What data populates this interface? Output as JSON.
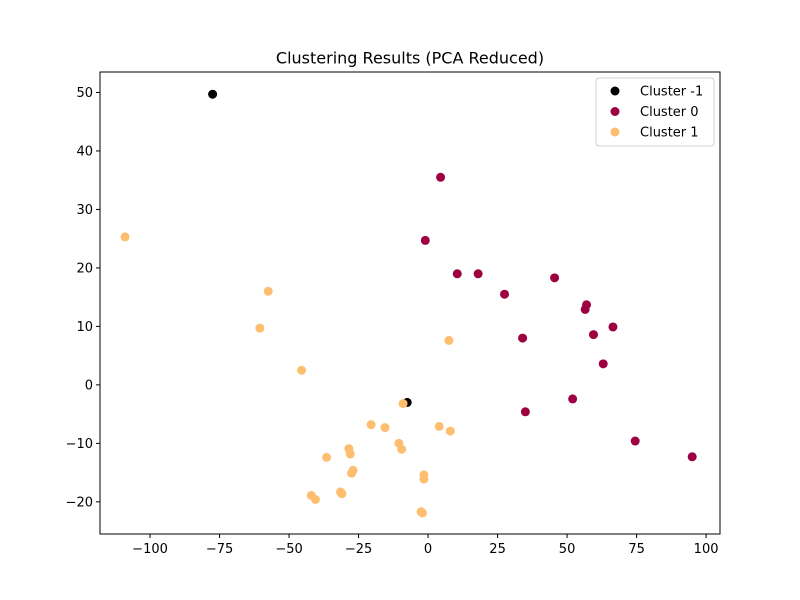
{
  "chart_data": {
    "type": "scatter",
    "title": "Clustering Results (PCA Reduced)",
    "xlabel": "",
    "ylabel": "",
    "xlim": [
      -118,
      105
    ],
    "ylim": [
      -25.5,
      53.5
    ],
    "x_ticks": [
      -100,
      -75,
      -50,
      -25,
      0,
      25,
      50,
      75,
      100
    ],
    "x_tick_labels": [
      "−100",
      "−75",
      "−50",
      "−25",
      "0",
      "25",
      "50",
      "75",
      "100"
    ],
    "y_ticks": [
      -20,
      -10,
      0,
      10,
      20,
      30,
      40,
      50
    ],
    "y_tick_labels": [
      "−20",
      "−10",
      "0",
      "10",
      "20",
      "30",
      "40",
      "50"
    ],
    "grid": false,
    "legend_position": "top-right",
    "series": [
      {
        "name": "Cluster -1",
        "color": "#000000",
        "points": [
          {
            "x": -77.5,
            "y": 49.7
          },
          {
            "x": -7.5,
            "y": -3.0
          }
        ]
      },
      {
        "name": "Cluster 0",
        "color": "#9e0142",
        "points": [
          {
            "x": 4.5,
            "y": 35.5
          },
          {
            "x": -1.0,
            "y": 24.7
          },
          {
            "x": 10.5,
            "y": 19.0
          },
          {
            "x": 18.0,
            "y": 19.0
          },
          {
            "x": 27.5,
            "y": 15.5
          },
          {
            "x": 45.5,
            "y": 18.3
          },
          {
            "x": 57.0,
            "y": 13.7
          },
          {
            "x": 56.5,
            "y": 12.9
          },
          {
            "x": 66.5,
            "y": 9.9
          },
          {
            "x": 59.5,
            "y": 8.6
          },
          {
            "x": 34.0,
            "y": 8.0
          },
          {
            "x": 63.0,
            "y": 3.6
          },
          {
            "x": 52.0,
            "y": -2.4
          },
          {
            "x": 35.0,
            "y": -4.6
          },
          {
            "x": 74.5,
            "y": -9.6
          },
          {
            "x": 95.0,
            "y": -12.3
          }
        ]
      },
      {
        "name": "Cluster 1",
        "color": "#fdbf6f",
        "points": [
          {
            "x": -109.0,
            "y": 25.3
          },
          {
            "x": -57.5,
            "y": 16.0
          },
          {
            "x": -60.5,
            "y": 9.7
          },
          {
            "x": -45.5,
            "y": 2.5
          },
          {
            "x": 7.5,
            "y": 7.6
          },
          {
            "x": -9.0,
            "y": -3.2
          },
          {
            "x": -20.5,
            "y": -6.8
          },
          {
            "x": -15.5,
            "y": -7.3
          },
          {
            "x": 4.0,
            "y": -7.1
          },
          {
            "x": 8.0,
            "y": -7.9
          },
          {
            "x": -10.5,
            "y": -10.0
          },
          {
            "x": -9.5,
            "y": -11.0
          },
          {
            "x": -28.5,
            "y": -10.9
          },
          {
            "x": -28.0,
            "y": -11.8
          },
          {
            "x": -36.5,
            "y": -12.4
          },
          {
            "x": -27.0,
            "y": -14.6
          },
          {
            "x": -27.5,
            "y": -15.1
          },
          {
            "x": -1.5,
            "y": -15.4
          },
          {
            "x": -1.5,
            "y": -16.1
          },
          {
            "x": -31.5,
            "y": -18.3
          },
          {
            "x": -31.0,
            "y": -18.6
          },
          {
            "x": -42.0,
            "y": -18.9
          },
          {
            "x": -40.5,
            "y": -19.6
          },
          {
            "x": -2.5,
            "y": -21.7
          },
          {
            "x": -2.0,
            "y": -21.9
          }
        ]
      }
    ]
  }
}
